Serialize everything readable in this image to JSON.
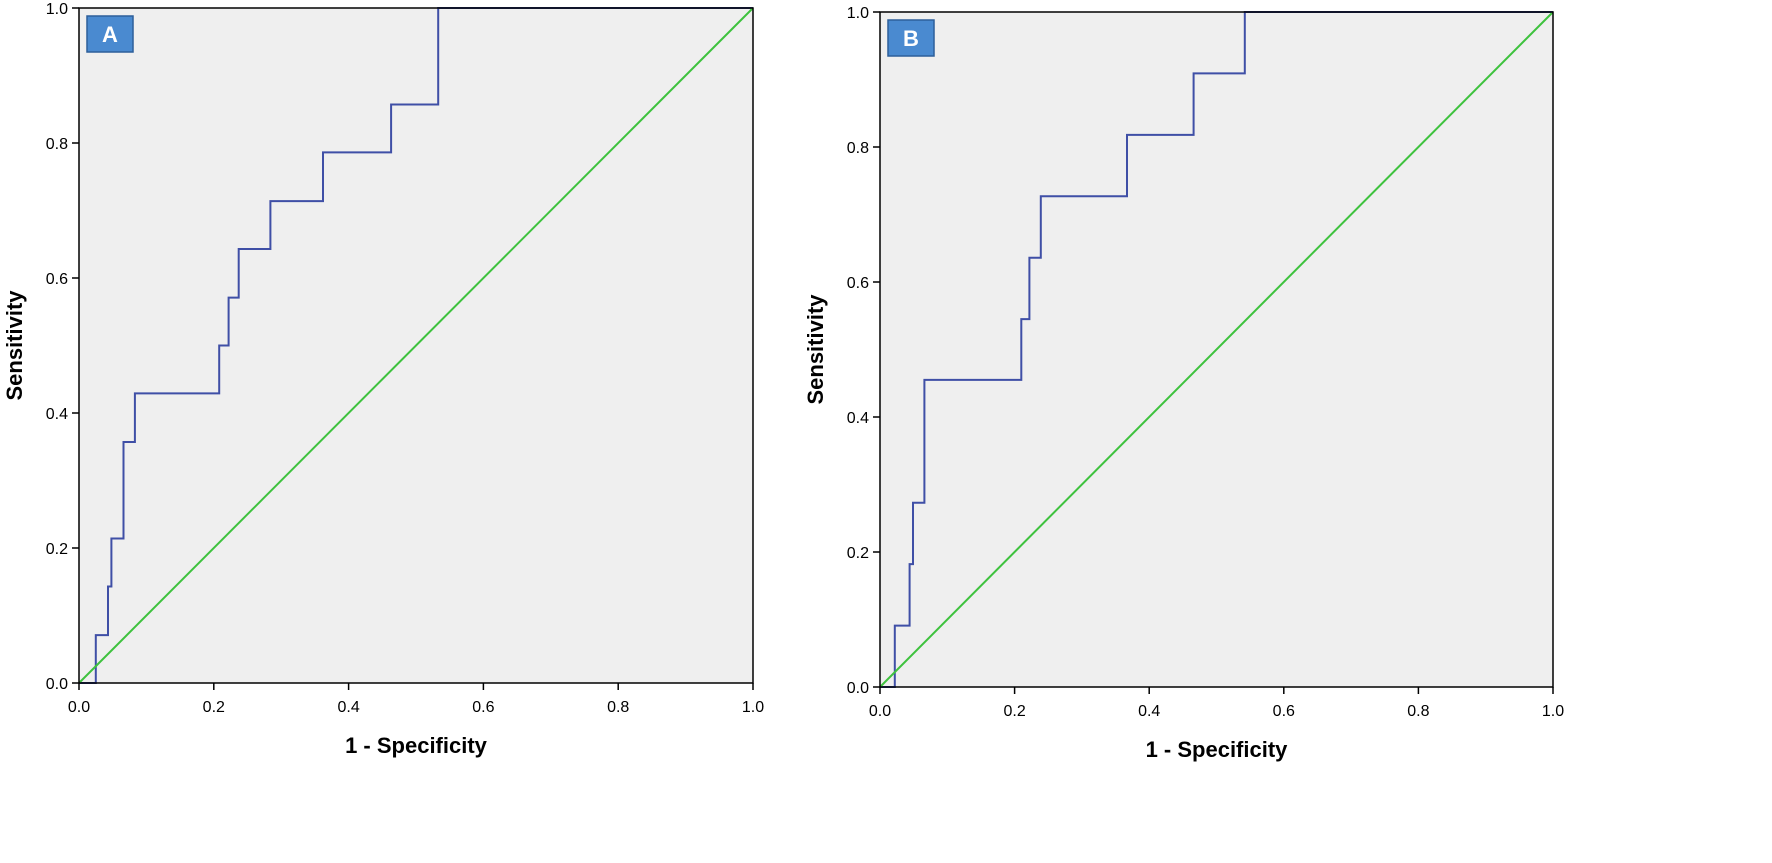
{
  "colors": {
    "plot_background": "#efefef",
    "roc_curve": "#3f4fa6",
    "reference_line": "#3ec23e",
    "panel_tag_fill": "#4a8ad0",
    "axis": "#000000"
  },
  "chart_data": [
    {
      "type": "line",
      "panel_label": "A",
      "xlabel": "1 - Specificity",
      "ylabel": "Sensitivity",
      "xlim": [
        0,
        1
      ],
      "ylim": [
        0,
        1
      ],
      "x_ticks": [
        "0.0",
        "0.2",
        "0.4",
        "0.6",
        "0.8",
        "1.0"
      ],
      "y_ticks": [
        "0.0",
        "0.2",
        "0.4",
        "0.6",
        "0.8",
        "1.0"
      ],
      "grid": false,
      "series": [
        {
          "style": "step",
          "color": "#3f4fa6",
          "x": [
            0.0,
            0.025,
            0.025,
            0.043,
            0.043,
            0.048,
            0.048,
            0.066,
            0.066,
            0.083,
            0.083,
            0.208,
            0.208,
            0.222,
            0.222,
            0.237,
            0.237,
            0.284,
            0.284,
            0.362,
            0.362,
            0.463,
            0.463,
            0.533,
            0.533,
            1.0
          ],
          "y": [
            0.0,
            0.0,
            0.071,
            0.071,
            0.143,
            0.143,
            0.214,
            0.214,
            0.357,
            0.357,
            0.429,
            0.429,
            0.5,
            0.5,
            0.571,
            0.571,
            0.643,
            0.643,
            0.714,
            0.714,
            0.786,
            0.786,
            0.857,
            0.857,
            1.0,
            1.0
          ]
        },
        {
          "style": "reference",
          "color": "#3ec23e",
          "x": [
            0.0,
            1.0
          ],
          "y": [
            0.0,
            1.0
          ]
        }
      ]
    },
    {
      "type": "line",
      "panel_label": "B",
      "xlabel": "1 - Specificity",
      "ylabel": "Sensitivity",
      "xlim": [
        0,
        1
      ],
      "ylim": [
        0,
        1
      ],
      "x_ticks": [
        "0.0",
        "0.2",
        "0.4",
        "0.6",
        "0.8",
        "1.0"
      ],
      "y_ticks": [
        "0.0",
        "0.2",
        "0.4",
        "0.6",
        "0.8",
        "1.0"
      ],
      "grid": false,
      "series": [
        {
          "style": "step",
          "color": "#3f4fa6",
          "x": [
            0.0,
            0.022,
            0.022,
            0.044,
            0.044,
            0.049,
            0.049,
            0.066,
            0.066,
            0.21,
            0.21,
            0.222,
            0.222,
            0.239,
            0.239,
            0.367,
            0.367,
            0.466,
            0.466,
            0.542,
            0.542,
            1.0
          ],
          "y": [
            0.0,
            0.0,
            0.091,
            0.091,
            0.182,
            0.182,
            0.273,
            0.273,
            0.455,
            0.455,
            0.545,
            0.545,
            0.636,
            0.636,
            0.727,
            0.727,
            0.818,
            0.818,
            0.909,
            0.909,
            1.0,
            1.0
          ]
        },
        {
          "style": "reference",
          "color": "#3ec23e",
          "x": [
            0.0,
            1.0
          ],
          "y": [
            0.0,
            1.0
          ]
        }
      ]
    }
  ]
}
